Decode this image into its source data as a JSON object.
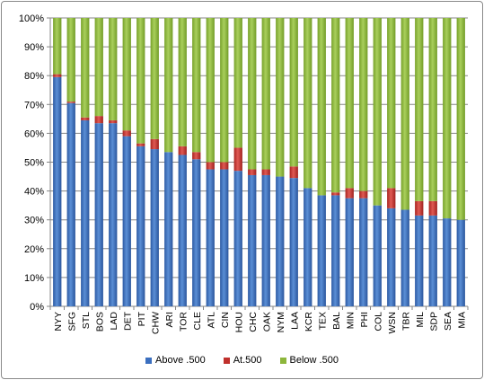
{
  "chart_data": {
    "type": "bar",
    "stacked": true,
    "percent": true,
    "categories": [
      "NYY",
      "SFG",
      "STL",
      "BOS",
      "LAD",
      "DET",
      "PIT",
      "CHW",
      "ARI",
      "TOR",
      "CLE",
      "ATL",
      "CIN",
      "HOU",
      "CHC",
      "OAK",
      "NYM",
      "LAA",
      "KCR",
      "TEX",
      "BAL",
      "MIN",
      "PHI",
      "COL",
      "WSN",
      "TBR",
      "MIL",
      "SDP",
      "SEA",
      "MIA"
    ],
    "series": [
      {
        "name": "Above .500",
        "color": "#3b6fbf",
        "values": [
          79.5,
          70.5,
          64.5,
          63.5,
          63.5,
          59.0,
          55.5,
          54.5,
          53.5,
          52.5,
          51.0,
          47.5,
          47.5,
          47.0,
          45.5,
          45.5,
          45.0,
          44.5,
          41.0,
          38.5,
          38.5,
          37.5,
          37.5,
          35.0,
          34.0,
          33.5,
          31.5,
          31.5,
          30.5,
          30.0
        ]
      },
      {
        "name": "At.500",
        "color": "#c0302c",
        "values": [
          1.0,
          0.5,
          1.0,
          2.5,
          1.0,
          2.0,
          1.0,
          3.5,
          0.0,
          3.0,
          2.5,
          2.5,
          2.5,
          8.0,
          2.0,
          2.0,
          0.0,
          4.0,
          0.0,
          0.0,
          1.0,
          3.5,
          2.5,
          0.0,
          7.0,
          0.0,
          5.0,
          5.0,
          0.0,
          0.0
        ]
      },
      {
        "name": "Below .500",
        "color": "#8db63b",
        "values": [
          19.5,
          29.0,
          34.5,
          34.0,
          35.5,
          39.0,
          43.5,
          42.0,
          46.5,
          44.5,
          46.5,
          50.0,
          50.0,
          45.0,
          52.5,
          52.5,
          55.0,
          51.5,
          59.0,
          61.5,
          60.5,
          59.0,
          60.0,
          65.0,
          59.0,
          66.5,
          63.5,
          63.5,
          69.5,
          70.0
        ]
      }
    ],
    "yticks": [
      "0%",
      "10%",
      "20%",
      "30%",
      "40%",
      "50%",
      "60%",
      "70%",
      "80%",
      "90%",
      "100%"
    ],
    "ylim": [
      0,
      100
    ],
    "grid": true,
    "legend_position": "bottom"
  }
}
